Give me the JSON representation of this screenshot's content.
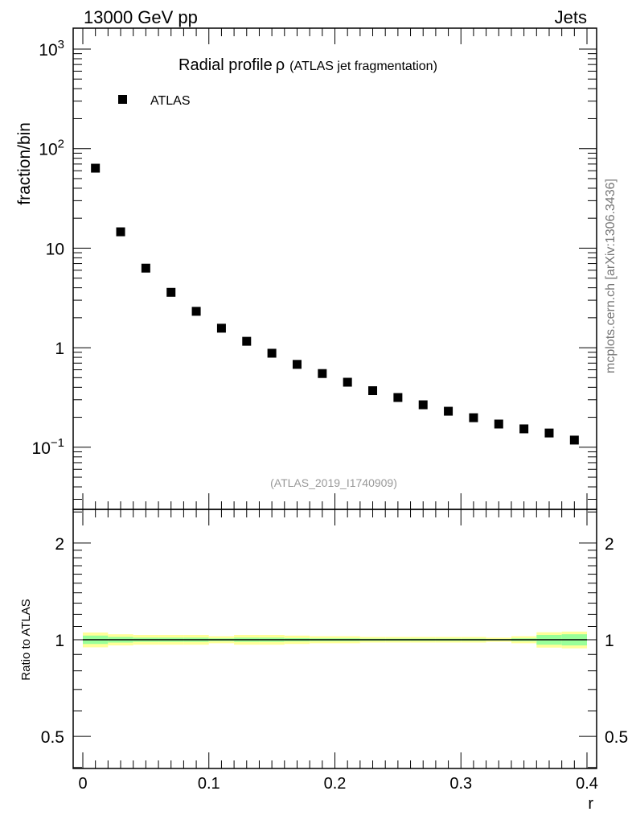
{
  "header": {
    "left": "13000 GeV pp",
    "right": "Jets"
  },
  "side_label": "mcplots.cern.ch [arXiv:1306.3436]",
  "colors": {
    "marker": "#000000",
    "band_outer": "#ffff99",
    "band_inner": "#99ff99",
    "ref_text": "#999999"
  },
  "chart_data": [
    {
      "type": "scatter",
      "title": "Radial profile",
      "title_symbol": "ρ",
      "subtitle": "(ATLAS jet fragmentation)",
      "ylabel": "fraction/bin",
      "xlabel": "r",
      "yscale": "log",
      "xlim": [
        0,
        0.4
      ],
      "ylim": [
        0.024,
        1620
      ],
      "yticks": [
        {
          "v": 1000,
          "base": "10",
          "exp": "3"
        },
        {
          "v": 100,
          "base": "10",
          "exp": "2"
        },
        {
          "v": 10,
          "base": "10",
          "exp": ""
        },
        {
          "v": 1,
          "base": "1",
          "exp": ""
        },
        {
          "v": 0.1,
          "base": "10",
          "exp": "−1"
        }
      ],
      "legend": [
        {
          "label": "ATLAS",
          "marker": "square"
        }
      ],
      "legend_placement": "top-left",
      "annotation": "(ATLAS_2019_I1740909)",
      "x": [
        0.01,
        0.03,
        0.05,
        0.07,
        0.09,
        0.11,
        0.13,
        0.15,
        0.17,
        0.19,
        0.21,
        0.23,
        0.25,
        0.27,
        0.29,
        0.31,
        0.33,
        0.35,
        0.37,
        0.39
      ],
      "series": [
        {
          "name": "ATLAS",
          "values": [
            63.6,
            14.6,
            6.3,
            3.6,
            2.32,
            1.57,
            1.16,
            0.88,
            0.68,
            0.55,
            0.45,
            0.37,
            0.316,
            0.267,
            0.23,
            0.198,
            0.171,
            0.153,
            0.139,
            0.118
          ]
        }
      ]
    },
    {
      "type": "area",
      "ylabel": "Ratio to ATLAS",
      "xlabel": "r",
      "yscale": "log",
      "xlim": [
        0,
        0.4
      ],
      "ylim": [
        0.397,
        2.55
      ],
      "yticks": [
        2,
        1,
        0.5
      ],
      "xticks": [
        "0",
        "0.1",
        "0.2",
        "0.3",
        "0.4"
      ],
      "bin_edges": [
        0,
        0.02,
        0.04,
        0.06,
        0.08,
        0.1,
        0.12,
        0.14,
        0.16,
        0.18,
        0.2,
        0.22,
        0.24,
        0.26,
        0.28,
        0.3,
        0.32,
        0.34,
        0.36,
        0.38,
        0.4
      ],
      "ratio": [
        1,
        1,
        1,
        1,
        1,
        1,
        1,
        1,
        1,
        1,
        1,
        1,
        1,
        1,
        1,
        1,
        1,
        1,
        1,
        1
      ],
      "outer_band_halfwidth": [
        0.053,
        0.04,
        0.035,
        0.035,
        0.035,
        0.025,
        0.035,
        0.035,
        0.03,
        0.025,
        0.025,
        0.02,
        0.02,
        0.02,
        0.02,
        0.02,
        0.015,
        0.025,
        0.055,
        0.06
      ],
      "inner_band_halfwidth": [
        0.03,
        0.02,
        0.015,
        0.015,
        0.015,
        0.01,
        0.015,
        0.015,
        0.012,
        0.01,
        0.01,
        0.008,
        0.008,
        0.008,
        0.008,
        0.008,
        0.006,
        0.01,
        0.035,
        0.04
      ]
    }
  ]
}
